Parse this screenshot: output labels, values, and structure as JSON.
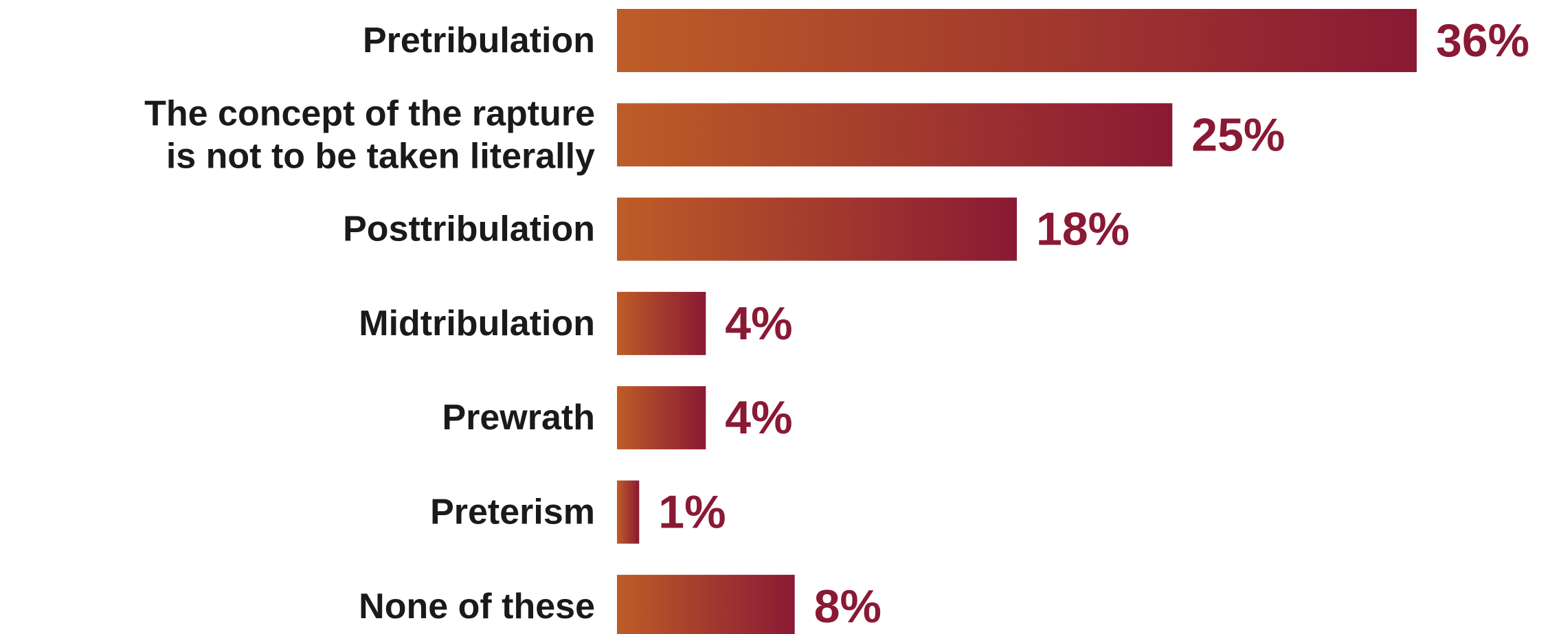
{
  "chart_data": {
    "type": "bar",
    "orientation": "horizontal",
    "categories": [
      [
        "Pretribulation"
      ],
      [
        "The concept of the rapture",
        "is not to be taken literally"
      ],
      [
        "Posttribulation"
      ],
      [
        "Midtribulation"
      ],
      [
        "Prewrath"
      ],
      [
        "Preterism"
      ],
      [
        "None of these"
      ]
    ],
    "values": [
      36,
      25,
      18,
      4,
      4,
      1,
      8
    ],
    "value_labels": [
      "36%",
      "25%",
      "18%",
      "4%",
      "4%",
      "1%",
      "8%"
    ],
    "xlim": [
      0,
      36
    ],
    "grid": false,
    "legend": "none"
  },
  "colors": {
    "bar_gradient_start": "#BD5D27",
    "bar_gradient_end": "#8A1934",
    "value_label": "#8A1934",
    "category_label": "#1A1A1A"
  }
}
